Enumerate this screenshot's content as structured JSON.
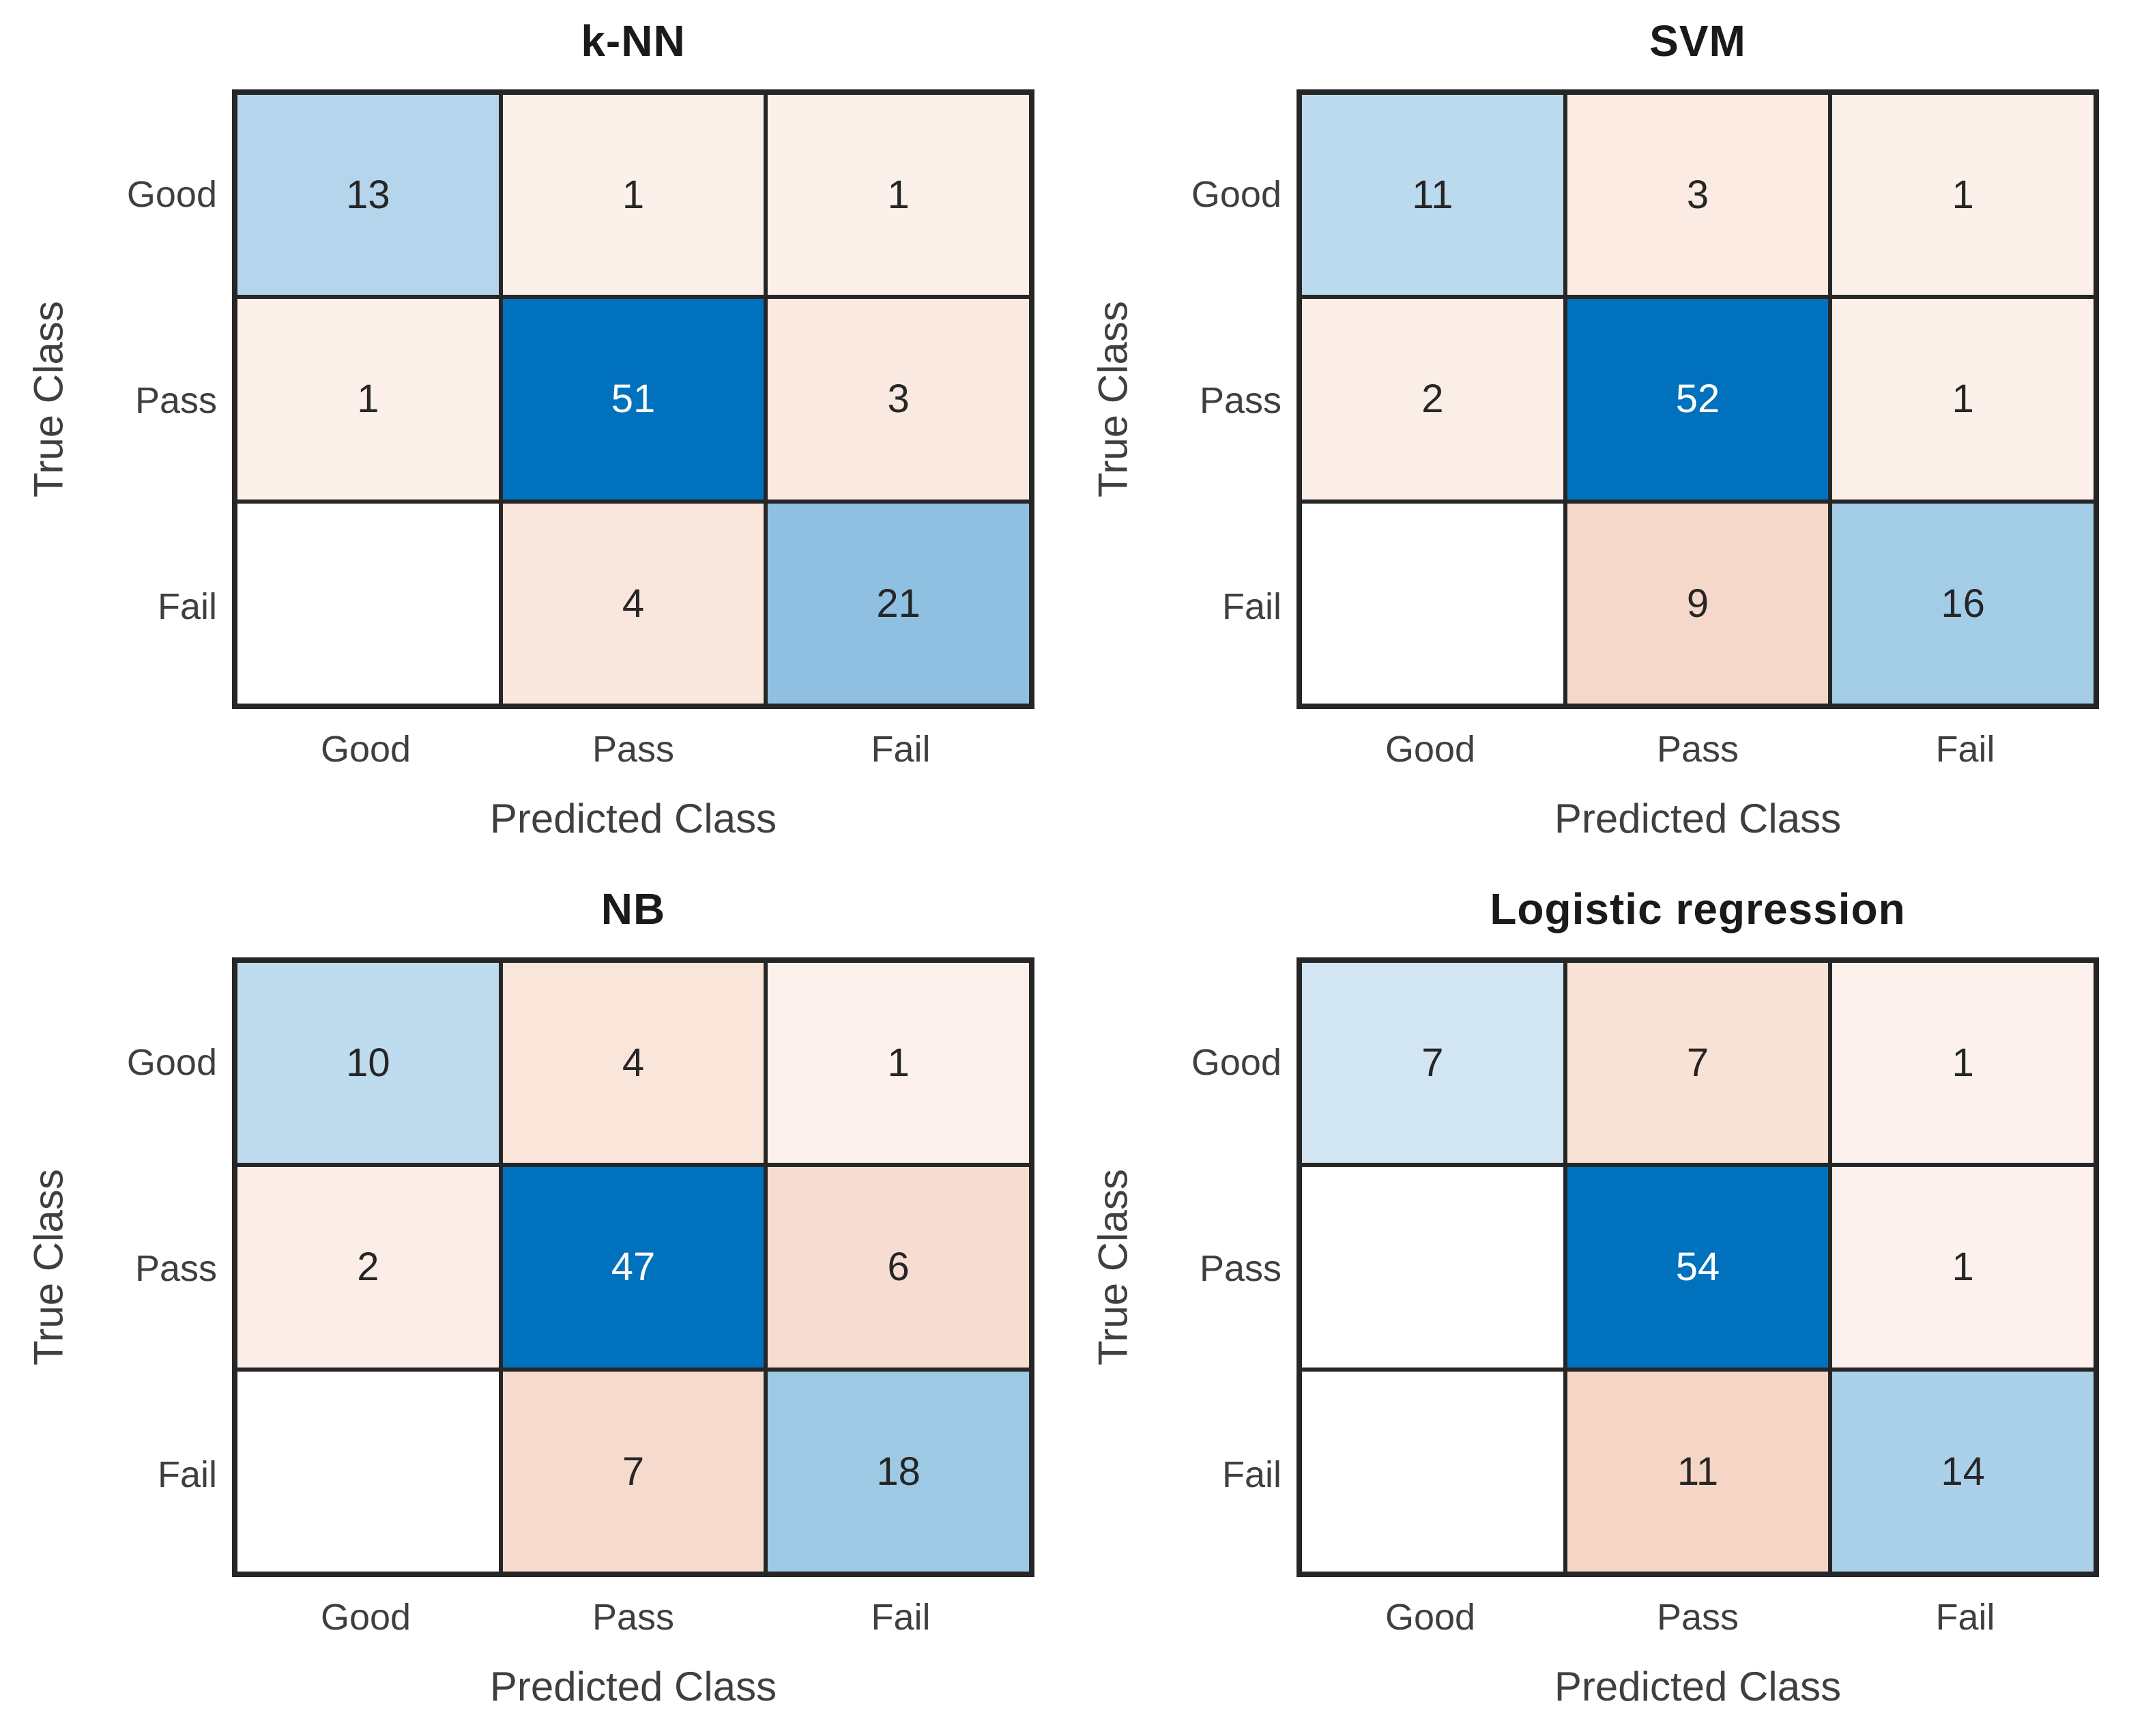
{
  "figure": {
    "background": "#ffffff",
    "grid_border_color": "#262626",
    "diagonal_full_color": "#0072bd",
    "number_color": "#262626",
    "label_color": "#3f3f3f"
  },
  "axes": {
    "ylabel": "True Class",
    "xlabel": "Predicted Class",
    "classes": [
      "Good",
      "Pass",
      "Fail"
    ]
  },
  "chart_data": [
    {
      "type": "heatmap",
      "title": "k-NN",
      "xlabel": "Predicted Class",
      "ylabel": "True Class",
      "x_categories": [
        "Good",
        "Pass",
        "Fail"
      ],
      "y_categories": [
        "Good",
        "Pass",
        "Fail"
      ],
      "matrix": [
        [
          13,
          1,
          1
        ],
        [
          1,
          51,
          3
        ],
        [
          null,
          4,
          21
        ]
      ]
    },
    {
      "type": "heatmap",
      "title": "SVM",
      "xlabel": "Predicted Class",
      "ylabel": "True Class",
      "x_categories": [
        "Good",
        "Pass",
        "Fail"
      ],
      "y_categories": [
        "Good",
        "Pass",
        "Fail"
      ],
      "matrix": [
        [
          11,
          3,
          1
        ],
        [
          2,
          52,
          1
        ],
        [
          null,
          9,
          16
        ]
      ]
    },
    {
      "type": "heatmap",
      "title": "NB",
      "xlabel": "Predicted Class",
      "ylabel": "True Class",
      "x_categories": [
        "Good",
        "Pass",
        "Fail"
      ],
      "y_categories": [
        "Good",
        "Pass",
        "Fail"
      ],
      "matrix": [
        [
          10,
          4,
          1
        ],
        [
          2,
          47,
          6
        ],
        [
          null,
          7,
          18
        ]
      ]
    },
    {
      "type": "heatmap",
      "title": "Logistic regression",
      "xlabel": "Predicted Class",
      "ylabel": "True Class",
      "x_categories": [
        "Good",
        "Pass",
        "Fail"
      ],
      "y_categories": [
        "Good",
        "Pass",
        "Fail"
      ],
      "matrix": [
        [
          7,
          7,
          1
        ],
        [
          null,
          54,
          1
        ],
        [
          null,
          11,
          14
        ]
      ]
    }
  ],
  "subplots": [
    {
      "title": "k-NN",
      "cells": [
        {
          "v": "13",
          "bg": "#b5d5ec",
          "fg": "#262626"
        },
        {
          "v": "1",
          "bg": "#fcf0ea",
          "fg": "#262626"
        },
        {
          "v": "1",
          "bg": "#fcf0ea",
          "fg": "#262626"
        },
        {
          "v": "1",
          "bg": "#fcf0ea",
          "fg": "#262626"
        },
        {
          "v": "51",
          "bg": "#0072bd",
          "fg": "#ffffff"
        },
        {
          "v": "3",
          "bg": "#fae9e1",
          "fg": "#262626"
        },
        {
          "v": "",
          "bg": "#ffffff"
        },
        {
          "v": "4",
          "bg": "#f9e6dc",
          "fg": "#262626"
        },
        {
          "v": "21",
          "bg": "#90c0e1",
          "fg": "#262626"
        }
      ]
    },
    {
      "title": "SVM",
      "cells": [
        {
          "v": "11",
          "bg": "#bcdaee",
          "fg": "#262626"
        },
        {
          "v": "3",
          "bg": "#fbebe3",
          "fg": "#262626"
        },
        {
          "v": "1",
          "bg": "#fcf0ea",
          "fg": "#262626"
        },
        {
          "v": "2",
          "bg": "#fbeee7",
          "fg": "#262626"
        },
        {
          "v": "52",
          "bg": "#0072bd",
          "fg": "#ffffff"
        },
        {
          "v": "1",
          "bg": "#fcf0ea",
          "fg": "#262626"
        },
        {
          "v": "",
          "bg": "#ffffff"
        },
        {
          "v": "9",
          "bg": "#f5d8ca",
          "fg": "#262626"
        },
        {
          "v": "16",
          "bg": "#a3cce7",
          "fg": "#262626"
        }
      ]
    },
    {
      "title": "NB",
      "cells": [
        {
          "v": "10",
          "bg": "#bedcee",
          "fg": "#262626"
        },
        {
          "v": "4",
          "bg": "#f9e5da",
          "fg": "#262626"
        },
        {
          "v": "1",
          "bg": "#fcf1ec",
          "fg": "#262626"
        },
        {
          "v": "2",
          "bg": "#fbeee7",
          "fg": "#262626"
        },
        {
          "v": "47",
          "bg": "#0072bd",
          "fg": "#ffffff"
        },
        {
          "v": "6",
          "bg": "#f7ddd1",
          "fg": "#262626"
        },
        {
          "v": "",
          "bg": "#ffffff"
        },
        {
          "v": "7",
          "bg": "#f6dacd",
          "fg": "#262626"
        },
        {
          "v": "18",
          "bg": "#9dc9e4",
          "fg": "#262626"
        }
      ]
    },
    {
      "title": "Logistic regression",
      "cells": [
        {
          "v": "7",
          "bg": "#d2e5f2",
          "fg": "#262626"
        },
        {
          "v": "7",
          "bg": "#f8e2d6",
          "fg": "#262626"
        },
        {
          "v": "1",
          "bg": "#fcf1ec",
          "fg": "#262626"
        },
        {
          "v": "",
          "bg": "#ffffff"
        },
        {
          "v": "54",
          "bg": "#0072bd",
          "fg": "#ffffff"
        },
        {
          "v": "1",
          "bg": "#fcf1ec",
          "fg": "#262626"
        },
        {
          "v": "",
          "bg": "#ffffff"
        },
        {
          "v": "11",
          "bg": "#f5d5c6",
          "fg": "#262626"
        },
        {
          "v": "14",
          "bg": "#abd0e9",
          "fg": "#262626"
        }
      ]
    }
  ]
}
